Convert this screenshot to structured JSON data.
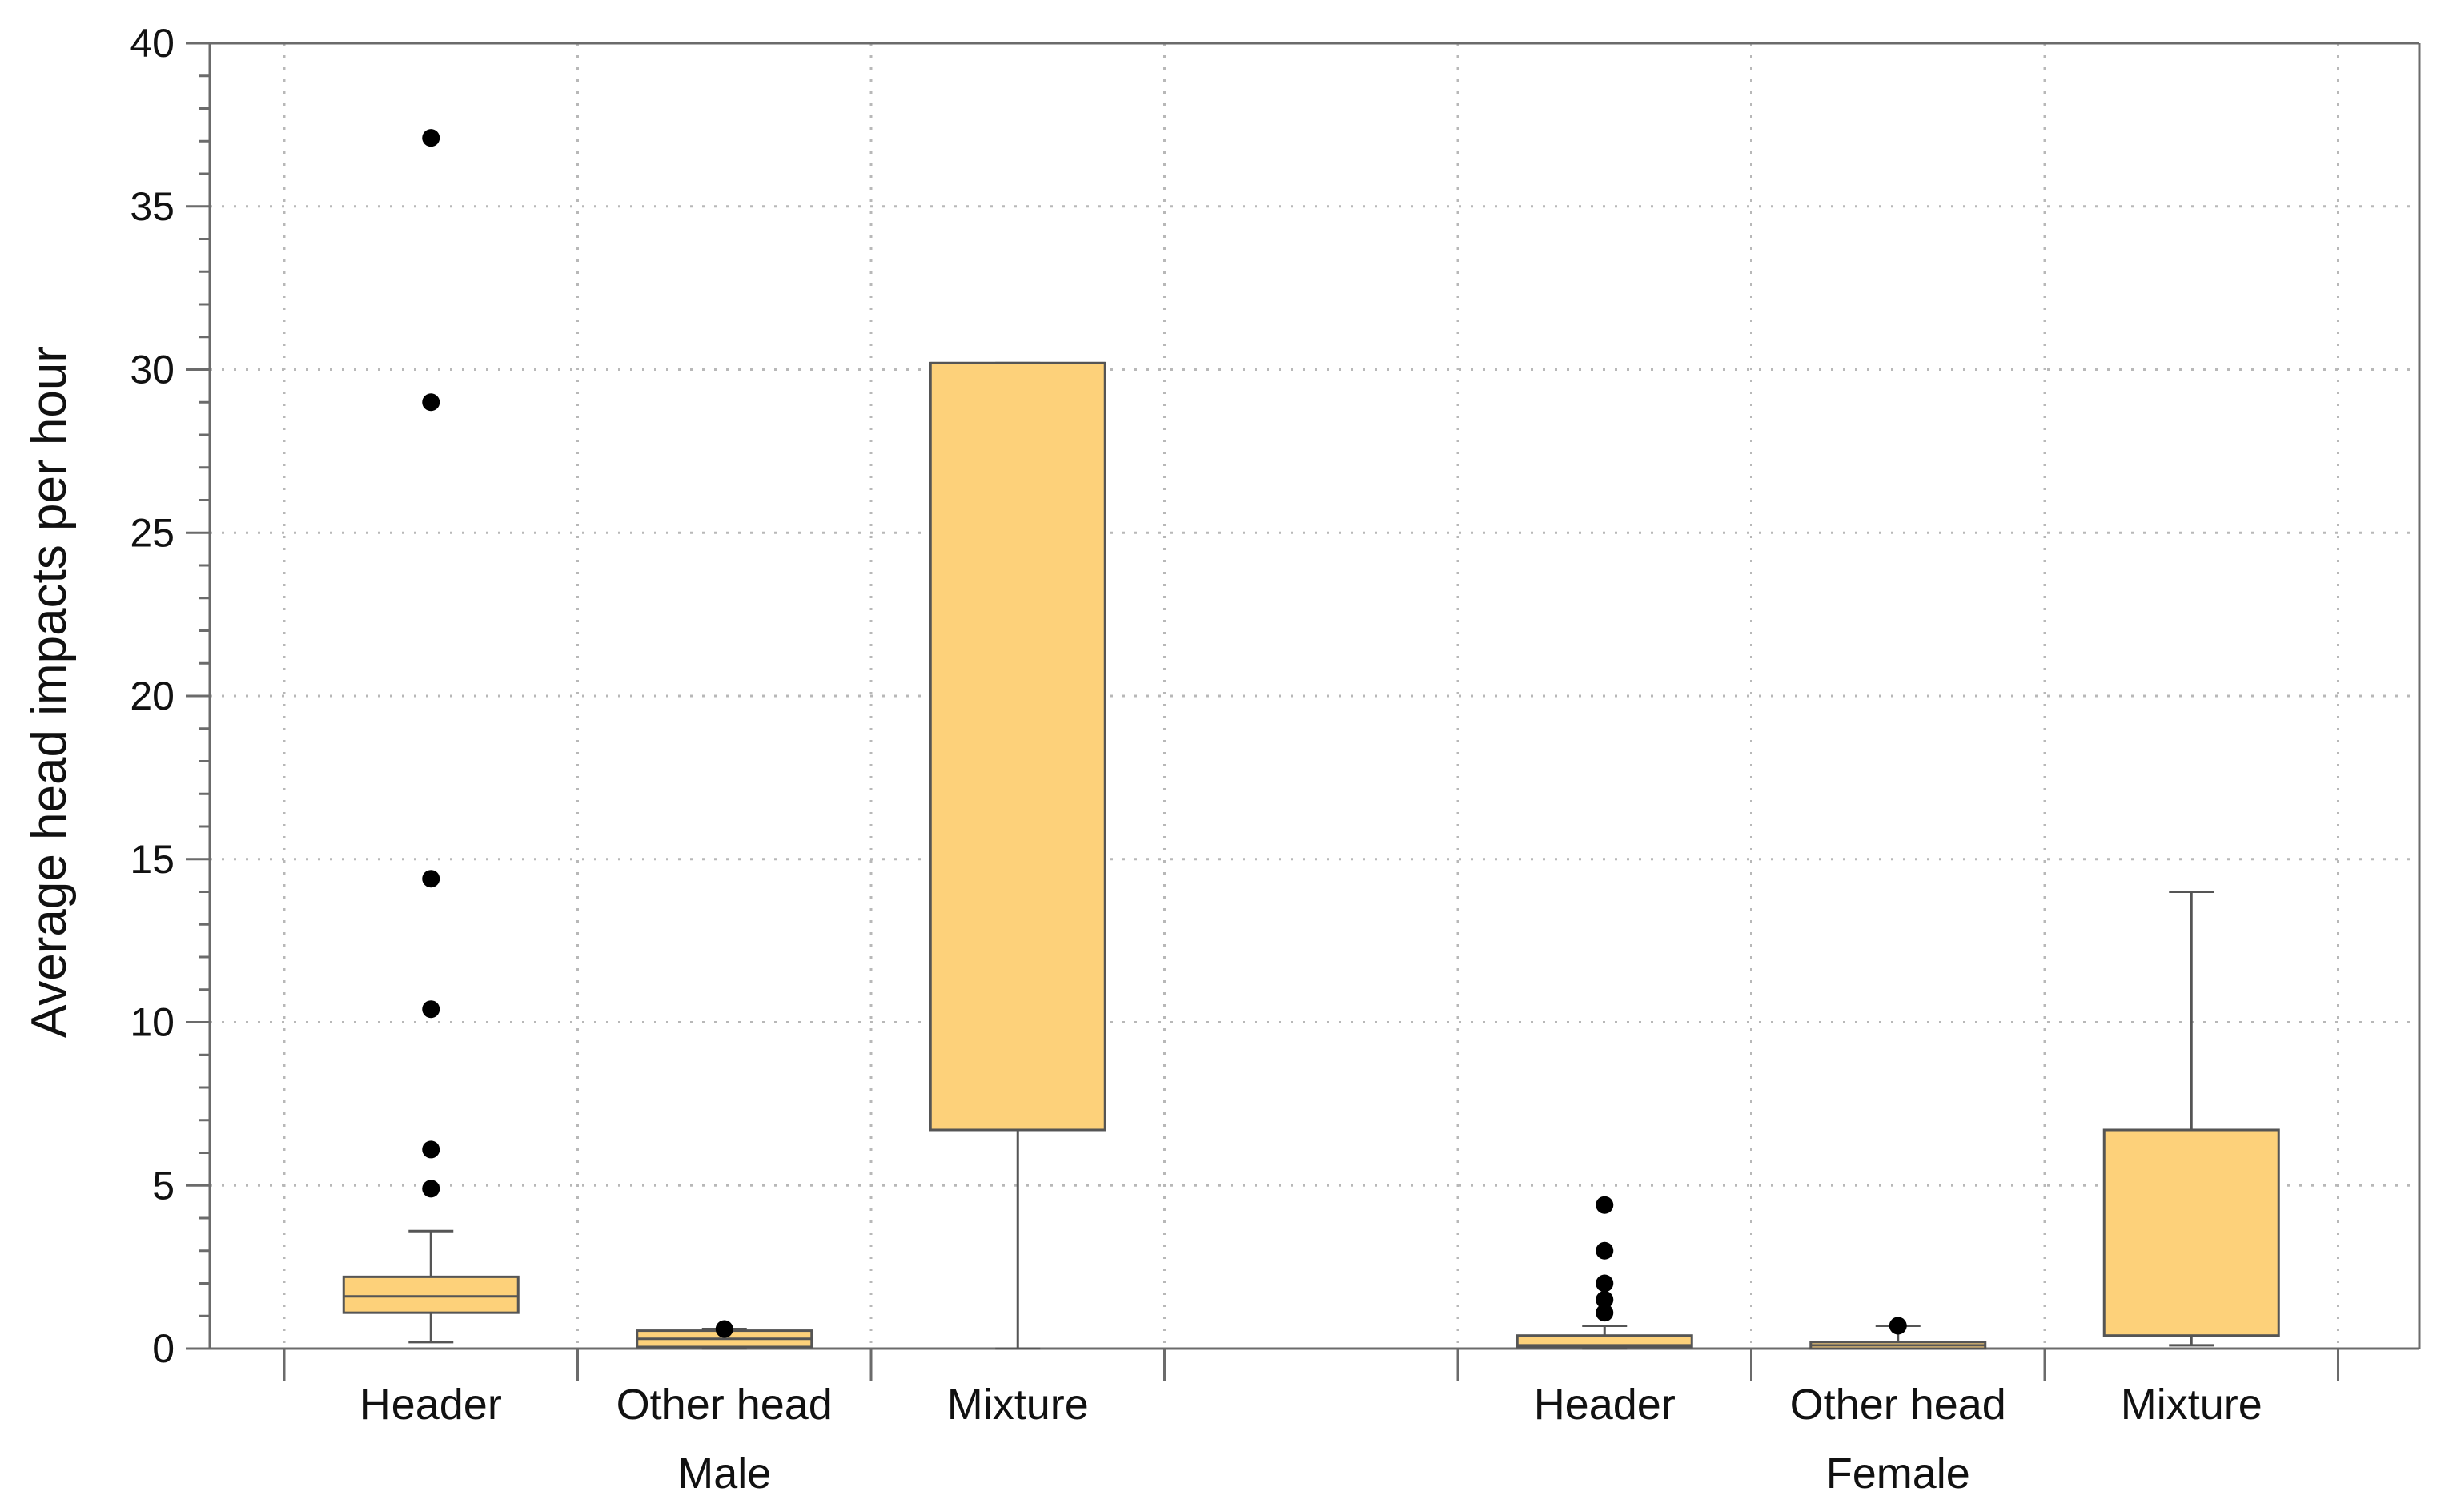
{
  "chart_data": {
    "type": "box",
    "title": "",
    "ylabel": "Average head impacts per hour",
    "xlabel": "",
    "ylim": [
      0,
      40
    ],
    "yticks": [
      0,
      5,
      10,
      15,
      20,
      25,
      30,
      35,
      40
    ],
    "grid": true,
    "colors": {
      "box_fill": "#FDD17A",
      "box_stroke": "#555555",
      "outlier": "#000000",
      "grid": "#b8b8b8"
    },
    "groups": [
      {
        "name": "Male",
        "boxes": [
          {
            "category": "Header",
            "whisker_low": 0.2,
            "q1": 1.1,
            "median": 1.6,
            "q3": 2.2,
            "whisker_high": 3.6,
            "outliers": [
              4.9,
              6.1,
              10.4,
              14.4,
              29.0,
              37.1
            ]
          },
          {
            "category": "Other head",
            "whisker_low": 0.0,
            "q1": 0.05,
            "median": 0.3,
            "q3": 0.55,
            "whisker_high": 0.6,
            "outliers": [
              0.6
            ]
          },
          {
            "category": "Mixture",
            "whisker_low": 0.0,
            "q1": 6.7,
            "median": 30.2,
            "q3": 30.2,
            "whisker_high": 30.2,
            "outliers": []
          }
        ]
      },
      {
        "name": "Female",
        "boxes": [
          {
            "category": "Header",
            "whisker_low": 0.0,
            "q1": 0.05,
            "median": 0.1,
            "q3": 0.4,
            "whisker_high": 0.7,
            "outliers": [
              1.1,
              1.5,
              2.0,
              3.0,
              4.4
            ]
          },
          {
            "category": "Other head",
            "whisker_low": 0.0,
            "q1": 0.0,
            "median": 0.1,
            "q3": 0.2,
            "whisker_high": 0.7,
            "outliers": [
              0.7
            ]
          },
          {
            "category": "Mixture",
            "whisker_low": 0.1,
            "q1": 0.4,
            "median": 6.7,
            "q3": 6.7,
            "whisker_high": 14.0,
            "outliers": []
          }
        ]
      }
    ]
  }
}
